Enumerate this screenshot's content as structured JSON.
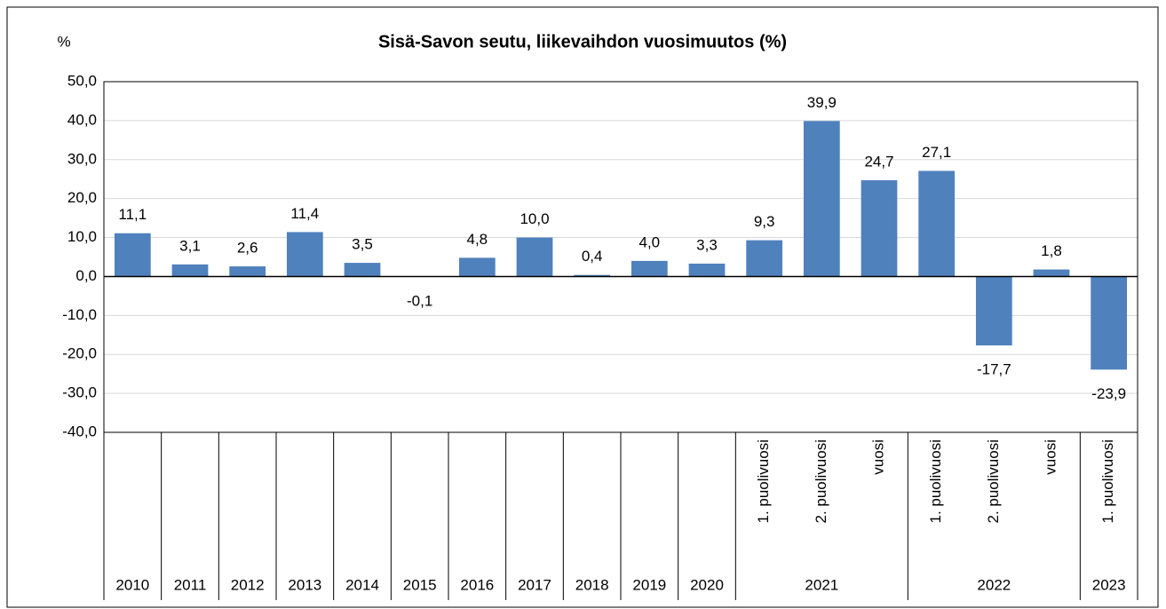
{
  "chart_data": {
    "type": "bar",
    "title": "Sisä-Savon seutu, liikevaihdon vuosimuutos (%)",
    "y_label": "%",
    "categories": [
      null,
      null,
      null,
      null,
      null,
      null,
      null,
      null,
      null,
      null,
      null,
      "1. puolivuosi",
      "2. puolivuosi",
      "vuosi",
      "1. puolivuosi",
      "2. puolivuosi",
      "vuosi",
      "1. puolivuosi"
    ],
    "groups": [
      {
        "label": "2010",
        "count": 1
      },
      {
        "label": "2011",
        "count": 1
      },
      {
        "label": "2012",
        "count": 1
      },
      {
        "label": "2013",
        "count": 1
      },
      {
        "label": "2014",
        "count": 1
      },
      {
        "label": "2015",
        "count": 1
      },
      {
        "label": "2016",
        "count": 1
      },
      {
        "label": "2017",
        "count": 1
      },
      {
        "label": "2018",
        "count": 1
      },
      {
        "label": "2019",
        "count": 1
      },
      {
        "label": "2020",
        "count": 1
      },
      {
        "label": "2021",
        "count": 3
      },
      {
        "label": "2022",
        "count": 3
      },
      {
        "label": "2023",
        "count": 1
      }
    ],
    "values": [
      11.1,
      3.1,
      2.6,
      11.4,
      3.5,
      -0.1,
      4.8,
      10.0,
      0.4,
      4.0,
      3.3,
      9.3,
      39.9,
      24.7,
      27.1,
      -17.7,
      1.8,
      -23.9
    ],
    "value_labels": [
      "11,1",
      "3,1",
      "2,6",
      "11,4",
      "3,5",
      "-0,1",
      "4,8",
      "10,0",
      "0,4",
      "4,0",
      "3,3",
      "9,3",
      "39,9",
      "24,7",
      "27,1",
      "-17,7",
      "1,8",
      "-23,9"
    ],
    "color": "#4f81bd",
    "ylim": [
      -40,
      50
    ],
    "yticks": [
      {
        "value": -40,
        "label": "-40,0"
      },
      {
        "value": -30,
        "label": "-30,0"
      },
      {
        "value": -20,
        "label": "-20,0"
      },
      {
        "value": -10,
        "label": "-10,0"
      },
      {
        "value": 0,
        "label": "0,0"
      },
      {
        "value": 10,
        "label": "10,0"
      },
      {
        "value": 20,
        "label": "20,0"
      },
      {
        "value": 30,
        "label": "30,0"
      },
      {
        "value": 40,
        "label": "40,0"
      },
      {
        "value": 50,
        "label": "50,0"
      }
    ],
    "grid": true
  }
}
